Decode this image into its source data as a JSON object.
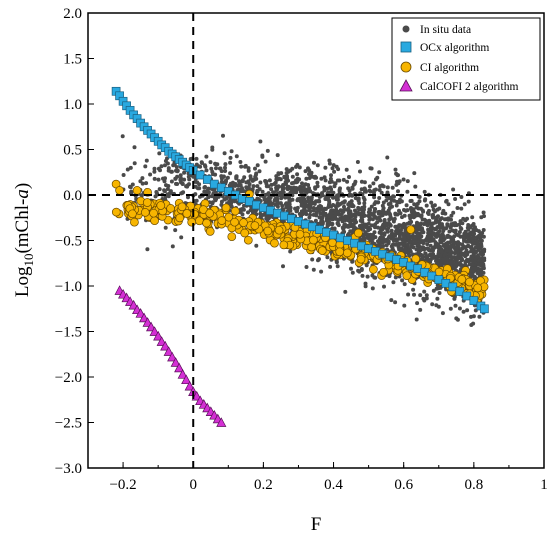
{
  "chart_data": {
    "type": "scatter",
    "xlabel": "F",
    "ylabel_main": "Log",
    "ylabel_sub": "10",
    "ylabel_rest": "(mChl-",
    "ylabel_italic": "a",
    "ylabel_close": ")",
    "xlim": [
      -0.3,
      1.0
    ],
    "ylim": [
      -3.0,
      2.0
    ],
    "xticks": [
      -0.2,
      0,
      0.2,
      0.4,
      0.6,
      0.8,
      1.0
    ],
    "xtick_labels": [
      "−0.2",
      "0",
      "0.2",
      "0.4",
      "0.6",
      "0.8",
      "1"
    ],
    "yticks": [
      2.0,
      1.5,
      1.0,
      0.5,
      0.0,
      -0.5,
      -1.0,
      -1.5,
      -2.0,
      -2.5,
      -3.0
    ],
    "ytick_labels": [
      "2.0",
      "1.5",
      "1.0",
      "0.5",
      "0.0",
      "−0.5",
      "−1.0",
      "−1.5",
      "−2.0",
      "−2.5",
      "−3.0"
    ],
    "reference_lines": {
      "x": 0,
      "y": 0,
      "style": "dashed"
    },
    "grid": false,
    "legend_position": "top-right",
    "series": [
      {
        "name": "In situ data",
        "marker": "circle-small",
        "color": "#4a4a4a",
        "distribution_note_values": {
          "x_range": [
            -0.22,
            0.83
          ],
          "center_line": [
            [
              -0.2,
              0.1
            ],
            [
              0.0,
              0.1
            ],
            [
              0.2,
              -0.05
            ],
            [
              0.4,
              -0.25
            ],
            [
              0.6,
              -0.45
            ],
            [
              0.8,
              -0.75
            ]
          ],
          "count": 2600
        }
      },
      {
        "name": "OCx algorithm",
        "marker": "square",
        "color": "#29a9e0",
        "points": [
          [
            -0.22,
            1.14
          ],
          [
            -0.21,
            1.09
          ],
          [
            -0.2,
            1.03
          ],
          [
            -0.19,
            0.98
          ],
          [
            -0.18,
            0.93
          ],
          [
            -0.17,
            0.88
          ],
          [
            -0.16,
            0.84
          ],
          [
            -0.15,
            0.79
          ],
          [
            -0.14,
            0.75
          ],
          [
            -0.13,
            0.71
          ],
          [
            -0.12,
            0.67
          ],
          [
            -0.11,
            0.63
          ],
          [
            -0.1,
            0.59
          ],
          [
            -0.09,
            0.55
          ],
          [
            -0.08,
            0.52
          ],
          [
            -0.07,
            0.48
          ],
          [
            -0.06,
            0.45
          ],
          [
            -0.05,
            0.42
          ],
          [
            -0.04,
            0.39
          ],
          [
            -0.03,
            0.36
          ],
          [
            -0.02,
            0.33
          ],
          [
            -0.01,
            0.3
          ],
          [
            0.0,
            0.27
          ],
          [
            0.02,
            0.22
          ],
          [
            0.04,
            0.17
          ],
          [
            0.06,
            0.12
          ],
          [
            0.08,
            0.08
          ],
          [
            0.1,
            0.04
          ],
          [
            0.12,
            0.0
          ],
          [
            0.14,
            -0.04
          ],
          [
            0.16,
            -0.07
          ],
          [
            0.18,
            -0.11
          ],
          [
            0.2,
            -0.14
          ],
          [
            0.22,
            -0.17
          ],
          [
            0.24,
            -0.2
          ],
          [
            0.26,
            -0.23
          ],
          [
            0.28,
            -0.26
          ],
          [
            0.3,
            -0.29
          ],
          [
            0.32,
            -0.32
          ],
          [
            0.34,
            -0.35
          ],
          [
            0.36,
            -0.38
          ],
          [
            0.38,
            -0.41
          ],
          [
            0.4,
            -0.44
          ],
          [
            0.42,
            -0.47
          ],
          [
            0.44,
            -0.5
          ],
          [
            0.46,
            -0.53
          ],
          [
            0.48,
            -0.56
          ],
          [
            0.5,
            -0.59
          ],
          [
            0.52,
            -0.62
          ],
          [
            0.54,
            -0.65
          ],
          [
            0.56,
            -0.68
          ],
          [
            0.58,
            -0.71
          ],
          [
            0.6,
            -0.74
          ],
          [
            0.62,
            -0.78
          ],
          [
            0.64,
            -0.81
          ],
          [
            0.66,
            -0.85
          ],
          [
            0.68,
            -0.89
          ],
          [
            0.7,
            -0.93
          ],
          [
            0.72,
            -0.97
          ],
          [
            0.74,
            -1.01
          ],
          [
            0.76,
            -1.06
          ],
          [
            0.78,
            -1.11
          ],
          [
            0.8,
            -1.16
          ],
          [
            0.82,
            -1.22
          ],
          [
            0.83,
            -1.25
          ]
        ]
      },
      {
        "name": "CI algorithm",
        "marker": "circle",
        "color": "#f7b500",
        "trend": [
          [
            -0.22,
            -0.16
          ],
          [
            -0.1,
            -0.18
          ],
          [
            0.0,
            -0.22
          ],
          [
            0.1,
            -0.28
          ],
          [
            0.2,
            -0.38
          ],
          [
            0.3,
            -0.47
          ],
          [
            0.4,
            -0.56
          ],
          [
            0.5,
            -0.66
          ],
          [
            0.6,
            -0.78
          ],
          [
            0.7,
            -0.88
          ],
          [
            0.8,
            -1.02
          ],
          [
            0.83,
            -1.06
          ]
        ],
        "count": 420
      },
      {
        "name": "CalCOFI 2 algorithm",
        "marker": "triangle",
        "color": "#d42fd4",
        "points": [
          [
            -0.21,
            -1.05
          ],
          [
            -0.2,
            -1.09
          ],
          [
            -0.19,
            -1.13
          ],
          [
            -0.18,
            -1.17
          ],
          [
            -0.17,
            -1.21
          ],
          [
            -0.16,
            -1.26
          ],
          [
            -0.15,
            -1.3
          ],
          [
            -0.14,
            -1.35
          ],
          [
            -0.13,
            -1.4
          ],
          [
            -0.12,
            -1.45
          ],
          [
            -0.11,
            -1.5
          ],
          [
            -0.1,
            -1.55
          ],
          [
            -0.09,
            -1.61
          ],
          [
            -0.08,
            -1.66
          ],
          [
            -0.07,
            -1.72
          ],
          [
            -0.06,
            -1.78
          ],
          [
            -0.05,
            -1.84
          ],
          [
            -0.04,
            -1.9
          ],
          [
            -0.03,
            -1.97
          ],
          [
            -0.02,
            -2.03
          ],
          [
            -0.01,
            -2.1
          ],
          [
            0.0,
            -2.16
          ],
          [
            0.01,
            -2.21
          ],
          [
            0.02,
            -2.26
          ],
          [
            0.03,
            -2.3
          ],
          [
            0.04,
            -2.34
          ],
          [
            0.05,
            -2.38
          ],
          [
            0.06,
            -2.42
          ],
          [
            0.07,
            -2.46
          ],
          [
            0.08,
            -2.5
          ]
        ]
      }
    ]
  }
}
